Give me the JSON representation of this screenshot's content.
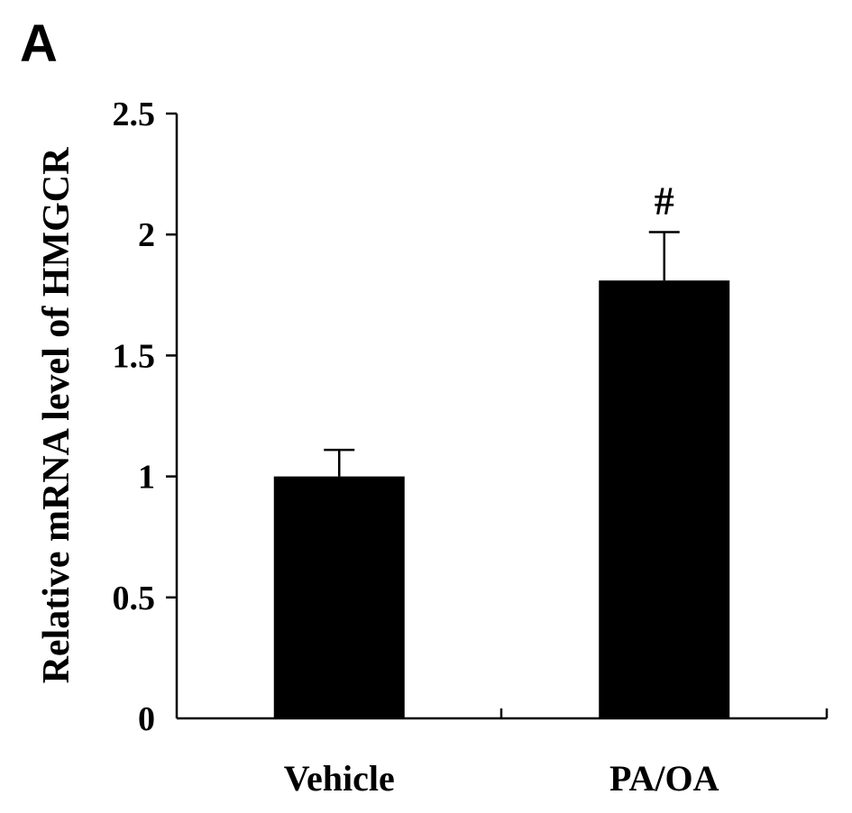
{
  "panel_label": "A",
  "chart_data": {
    "type": "bar",
    "title": "",
    "xlabel": "",
    "ylabel": "Relative mRNA level of HMGCR",
    "ylim": [
      0,
      2.5
    ],
    "yticks": [
      0,
      0.5,
      1,
      1.5,
      2,
      2.5
    ],
    "ytick_labels": [
      "0",
      "0.5",
      "1",
      "1.5",
      "2",
      "2.5"
    ],
    "categories": [
      "Vehicle",
      "PA/OA"
    ],
    "values": [
      1.0,
      1.81
    ],
    "errors": [
      0.11,
      0.2
    ],
    "annotations": [
      "",
      "#"
    ],
    "bar_color": "#000000",
    "grid": false,
    "legend": "none"
  }
}
